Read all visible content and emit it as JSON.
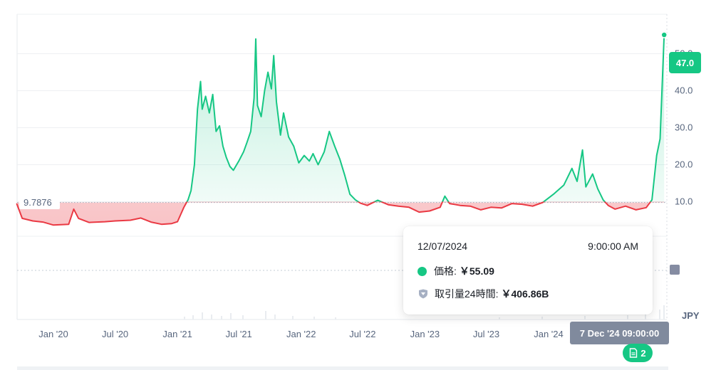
{
  "chart_data": {
    "type": "area",
    "currency": "JPY",
    "ylim": [
      0,
      55
    ],
    "y_ticks": [
      "10.0",
      "20.0",
      "30.0",
      "40.0",
      "50.0"
    ],
    "y_tick_values": [
      10,
      20,
      30,
      40,
      50
    ],
    "x_ticks": [
      "Jan '20",
      "Jul '20",
      "Jan '21",
      "Jul '21",
      "Jan '22",
      "Jul '22",
      "Jan '23",
      "Jul '23",
      "Jan '24"
    ],
    "x_tick_dates": [
      "2020-01-01",
      "2020-07-01",
      "2021-01-01",
      "2021-07-01",
      "2022-01-01",
      "2022-07-01",
      "2023-01-01",
      "2023-07-01",
      "2024-01-01"
    ],
    "baseline": {
      "value": 9.7876,
      "label": "9.7876"
    },
    "series": [
      {
        "points": [
          [
            "2019-09-15",
            9.4
          ],
          [
            "2019-10-01",
            5.5
          ],
          [
            "2019-11-01",
            4.8
          ],
          [
            "2019-12-01",
            4.5
          ],
          [
            "2020-01-01",
            3.7
          ],
          [
            "2020-02-15",
            3.9
          ],
          [
            "2020-03-01",
            8.0
          ],
          [
            "2020-03-15",
            5.5
          ],
          [
            "2020-04-15",
            4.4
          ],
          [
            "2020-06-01",
            4.6
          ],
          [
            "2020-07-01",
            4.8
          ],
          [
            "2020-08-15",
            5.0
          ],
          [
            "2020-09-15",
            5.6
          ],
          [
            "2020-10-15",
            4.5
          ],
          [
            "2020-11-15",
            3.9
          ],
          [
            "2020-12-15",
            4.1
          ],
          [
            "2021-01-01",
            4.6
          ],
          [
            "2021-01-20",
            8.5
          ],
          [
            "2021-02-01",
            10.5
          ],
          [
            "2021-02-10",
            13.0
          ],
          [
            "2021-02-20",
            20.0
          ],
          [
            "2021-03-01",
            35.0
          ],
          [
            "2021-03-10",
            42.5
          ],
          [
            "2021-03-15",
            35.0
          ],
          [
            "2021-03-25",
            38.5
          ],
          [
            "2021-04-05",
            34.0
          ],
          [
            "2021-04-15",
            39.0
          ],
          [
            "2021-04-25",
            29.0
          ],
          [
            "2021-05-05",
            30.5
          ],
          [
            "2021-05-15",
            25.0
          ],
          [
            "2021-05-25",
            22.0
          ],
          [
            "2021-06-05",
            19.5
          ],
          [
            "2021-06-15",
            18.5
          ],
          [
            "2021-07-01",
            21.0
          ],
          [
            "2021-07-15",
            23.5
          ],
          [
            "2021-07-25",
            26.0
          ],
          [
            "2021-08-05",
            29.0
          ],
          [
            "2021-08-15",
            38.0
          ],
          [
            "2021-08-20",
            54.0
          ],
          [
            "2021-08-25",
            36.0
          ],
          [
            "2021-09-05",
            33.0
          ],
          [
            "2021-09-15",
            40.0
          ],
          [
            "2021-09-25",
            45.0
          ],
          [
            "2021-10-05",
            40.5
          ],
          [
            "2021-10-12",
            49.5
          ],
          [
            "2021-10-20",
            37.0
          ],
          [
            "2021-11-01",
            28.0
          ],
          [
            "2021-11-10",
            34.0
          ],
          [
            "2021-11-25",
            27.5
          ],
          [
            "2021-12-10",
            25.0
          ],
          [
            "2021-12-25",
            20.5
          ],
          [
            "2022-01-10",
            22.5
          ],
          [
            "2022-01-25",
            21.0
          ],
          [
            "2022-02-05",
            23.0
          ],
          [
            "2022-02-20",
            20.0
          ],
          [
            "2022-03-10",
            23.5
          ],
          [
            "2022-03-25",
            29.0
          ],
          [
            "2022-04-10",
            25.0
          ],
          [
            "2022-04-25",
            21.5
          ],
          [
            "2022-05-10",
            17.0
          ],
          [
            "2022-05-25",
            12.0
          ],
          [
            "2022-06-10",
            10.5
          ],
          [
            "2022-06-25",
            9.6
          ],
          [
            "2022-07-15",
            9.0
          ],
          [
            "2022-08-15",
            10.4
          ],
          [
            "2022-09-15",
            9.2
          ],
          [
            "2022-10-15",
            8.8
          ],
          [
            "2022-11-15",
            8.5
          ],
          [
            "2022-12-15",
            7.2
          ],
          [
            "2023-01-15",
            7.5
          ],
          [
            "2023-02-15",
            8.5
          ],
          [
            "2023-03-01",
            11.5
          ],
          [
            "2023-03-15",
            9.5
          ],
          [
            "2023-04-15",
            9.0
          ],
          [
            "2023-05-15",
            8.8
          ],
          [
            "2023-06-15",
            7.8
          ],
          [
            "2023-07-15",
            8.5
          ],
          [
            "2023-08-15",
            8.3
          ],
          [
            "2023-09-15",
            9.5
          ],
          [
            "2023-10-15",
            9.3
          ],
          [
            "2023-11-15",
            8.8
          ],
          [
            "2023-12-15",
            9.8
          ],
          [
            "2024-01-15",
            12.0
          ],
          [
            "2024-02-15",
            14.5
          ],
          [
            "2024-03-10",
            19.0
          ],
          [
            "2024-03-25",
            15.5
          ],
          [
            "2024-04-10",
            24.0
          ],
          [
            "2024-04-20",
            14.0
          ],
          [
            "2024-05-10",
            17.5
          ],
          [
            "2024-05-25",
            13.5
          ],
          [
            "2024-06-10",
            10.5
          ],
          [
            "2024-06-25",
            9.0
          ],
          [
            "2024-07-15",
            8.0
          ],
          [
            "2024-08-15",
            8.8
          ],
          [
            "2024-09-15",
            7.8
          ],
          [
            "2024-10-15",
            8.4
          ],
          [
            "2024-11-01",
            10.5
          ],
          [
            "2024-11-15",
            22.5
          ],
          [
            "2024-11-25",
            27.0
          ],
          [
            "2024-12-07",
            55.09
          ]
        ]
      }
    ],
    "up_color": "#16c784",
    "down_color": "#ea3943",
    "grid": true
  },
  "tooltip": {
    "date": "12/07/2024",
    "time": "9:00:00 AM",
    "price_label": "価格:",
    "price_value": "￥55.09",
    "volume_label": "取引量24時間:",
    "volume_value": "￥406.86B"
  },
  "current_price_badge": "47.0",
  "crosshair_date_badge": "7 Dec '24 09:00:00",
  "news_count": "2",
  "currency_label": "JPY"
}
